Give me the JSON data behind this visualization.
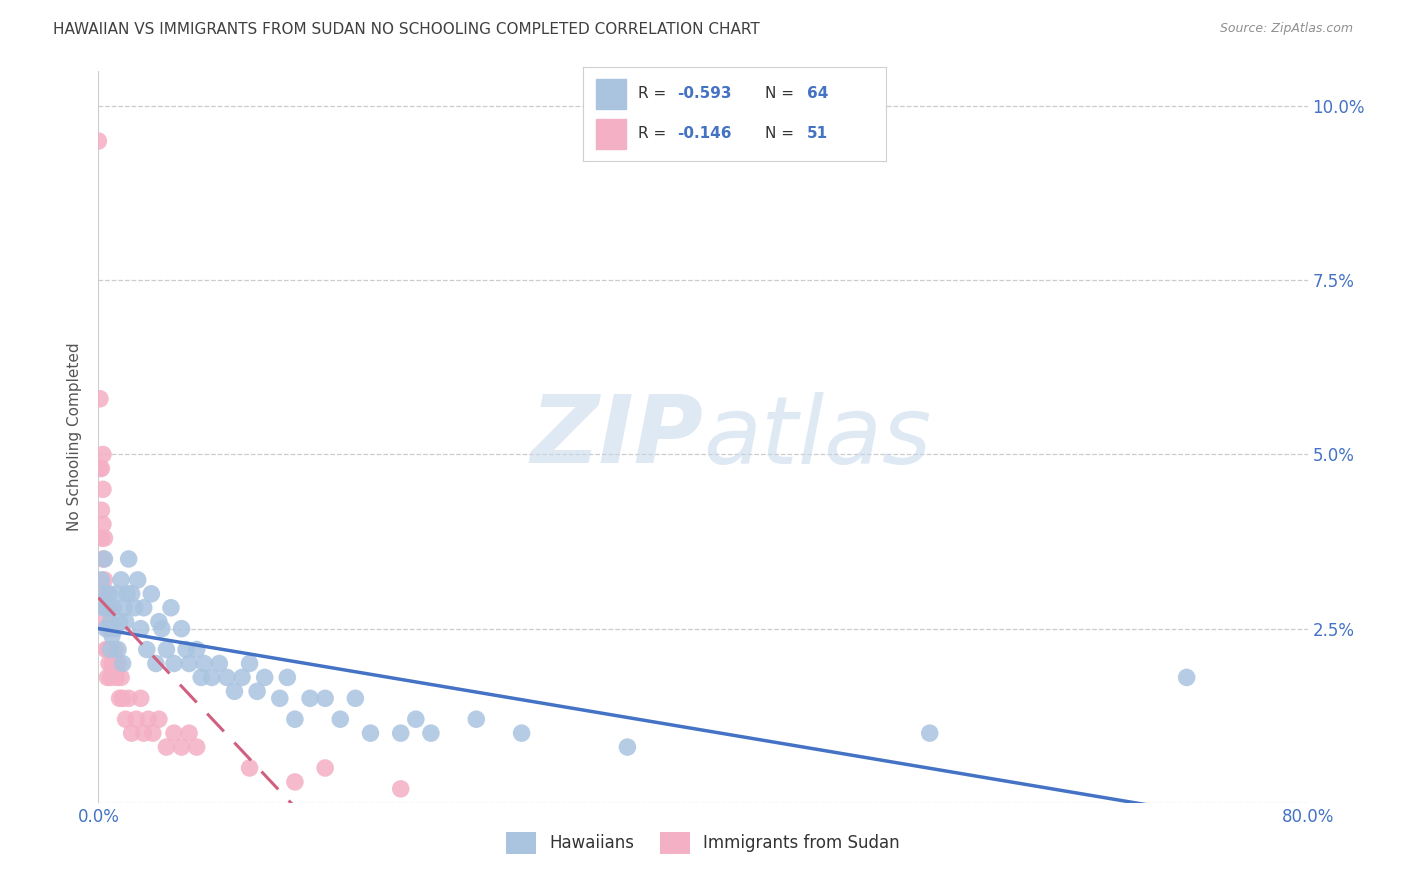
{
  "title": "HAWAIIAN VS IMMIGRANTS FROM SUDAN NO SCHOOLING COMPLETED CORRELATION CHART",
  "source": "Source: ZipAtlas.com",
  "ylabel": "No Schooling Completed",
  "watermark_zip": "ZIP",
  "watermark_atlas": "atlas",
  "xlim": [
    0.0,
    0.8
  ],
  "ylim": [
    0.0,
    0.105
  ],
  "xticks": [
    0.0,
    0.1,
    0.2,
    0.3,
    0.4,
    0.5,
    0.6,
    0.7,
    0.8
  ],
  "yticks": [
    0.0,
    0.025,
    0.05,
    0.075,
    0.1
  ],
  "color_hawaiian": "#aac4e0",
  "color_sudan": "#f4b0c4",
  "color_line_hawaiian": "#4472C4",
  "color_line_sudan": "#d06080",
  "color_title": "#404040",
  "color_source": "#909090",
  "color_axis": "#4472C4",
  "background": "#ffffff",
  "legend_box_color": "#e8e8e8",
  "r_hawaiian": -0.593,
  "n_hawaiian": 64,
  "r_sudan": -0.146,
  "n_sudan": 51,
  "hawaiian_x": [
    0.002,
    0.003,
    0.004,
    0.005,
    0.005,
    0.006,
    0.007,
    0.008,
    0.008,
    0.009,
    0.01,
    0.011,
    0.012,
    0.013,
    0.014,
    0.015,
    0.016,
    0.017,
    0.018,
    0.019,
    0.02,
    0.022,
    0.024,
    0.026,
    0.028,
    0.03,
    0.032,
    0.035,
    0.038,
    0.04,
    0.042,
    0.045,
    0.048,
    0.05,
    0.055,
    0.058,
    0.06,
    0.065,
    0.068,
    0.07,
    0.075,
    0.08,
    0.085,
    0.09,
    0.095,
    0.1,
    0.105,
    0.11,
    0.12,
    0.125,
    0.13,
    0.14,
    0.15,
    0.16,
    0.17,
    0.18,
    0.2,
    0.21,
    0.22,
    0.25,
    0.28,
    0.35,
    0.55,
    0.72
  ],
  "hawaiian_y": [
    0.032,
    0.028,
    0.035,
    0.03,
    0.025,
    0.028,
    0.03,
    0.026,
    0.022,
    0.024,
    0.028,
    0.025,
    0.03,
    0.022,
    0.026,
    0.032,
    0.02,
    0.028,
    0.026,
    0.03,
    0.035,
    0.03,
    0.028,
    0.032,
    0.025,
    0.028,
    0.022,
    0.03,
    0.02,
    0.026,
    0.025,
    0.022,
    0.028,
    0.02,
    0.025,
    0.022,
    0.02,
    0.022,
    0.018,
    0.02,
    0.018,
    0.02,
    0.018,
    0.016,
    0.018,
    0.02,
    0.016,
    0.018,
    0.015,
    0.018,
    0.012,
    0.015,
    0.015,
    0.012,
    0.015,
    0.01,
    0.01,
    0.012,
    0.01,
    0.012,
    0.01,
    0.008,
    0.01,
    0.018
  ],
  "sudan_x": [
    0.0,
    0.001,
    0.001,
    0.002,
    0.002,
    0.002,
    0.003,
    0.003,
    0.003,
    0.003,
    0.004,
    0.004,
    0.004,
    0.005,
    0.005,
    0.005,
    0.006,
    0.006,
    0.006,
    0.007,
    0.007,
    0.008,
    0.008,
    0.008,
    0.009,
    0.01,
    0.01,
    0.011,
    0.012,
    0.013,
    0.014,
    0.015,
    0.016,
    0.018,
    0.02,
    0.022,
    0.025,
    0.028,
    0.03,
    0.033,
    0.036,
    0.04,
    0.045,
    0.05,
    0.055,
    0.06,
    0.065,
    0.1,
    0.13,
    0.15,
    0.2
  ],
  "sudan_y": [
    0.095,
    0.058,
    0.048,
    0.048,
    0.042,
    0.038,
    0.05,
    0.045,
    0.04,
    0.035,
    0.038,
    0.032,
    0.028,
    0.03,
    0.026,
    0.022,
    0.028,
    0.022,
    0.018,
    0.025,
    0.02,
    0.028,
    0.022,
    0.018,
    0.02,
    0.025,
    0.02,
    0.022,
    0.018,
    0.02,
    0.015,
    0.018,
    0.015,
    0.012,
    0.015,
    0.01,
    0.012,
    0.015,
    0.01,
    0.012,
    0.01,
    0.012,
    0.008,
    0.01,
    0.008,
    0.01,
    0.008,
    0.005,
    0.003,
    0.005,
    0.002
  ]
}
